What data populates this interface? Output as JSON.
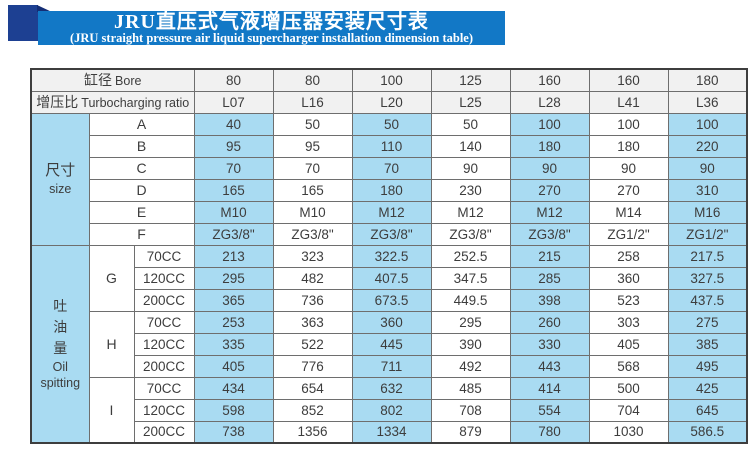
{
  "header": {
    "title_zh": "JRU直压式气液增压器安装尺寸表",
    "title_en": "(JRU straight pressure air liquid supercharger installation dimension table)"
  },
  "colors": {
    "banner-blue": "#1278c6",
    "navy": "#1d4092",
    "cell-blue": "#a9dbf2",
    "header-gray": "#f1f1f1",
    "text": "#3d3d3d"
  },
  "table": {
    "bore_label_zh": "缸径",
    "bore_label_en": "Bore",
    "bore_values": [
      "80",
      "80",
      "100",
      "125",
      "160",
      "160",
      "180"
    ],
    "ratio_label_zh": "增压比",
    "ratio_label_en": "Turbocharging ratio",
    "ratio_values": [
      "L07",
      "L16",
      "L20",
      "L25",
      "L28",
      "L41",
      "L36"
    ],
    "size_group": {
      "zh": "尺寸",
      "en": "size"
    },
    "size_rows": [
      {
        "label": "A",
        "values": [
          "40",
          "50",
          "50",
          "50",
          "100",
          "100",
          "100"
        ]
      },
      {
        "label": "B",
        "values": [
          "95",
          "95",
          "110",
          "140",
          "180",
          "180",
          "220"
        ]
      },
      {
        "label": "C",
        "values": [
          "70",
          "70",
          "70",
          "90",
          "90",
          "90",
          "90"
        ]
      },
      {
        "label": "D",
        "values": [
          "165",
          "165",
          "180",
          "230",
          "270",
          "270",
          "310"
        ]
      },
      {
        "label": "E",
        "values": [
          "M10",
          "M10",
          "M12",
          "M12",
          "M12",
          "M14",
          "M16"
        ]
      },
      {
        "label": "F",
        "values": [
          "ZG3/8\"",
          "ZG3/8\"",
          "ZG3/8\"",
          "ZG3/8\"",
          "ZG3/8\"",
          "ZG1/2\"",
          "ZG1/2\""
        ]
      }
    ],
    "oil_group": {
      "zh": "吐油量",
      "en1": "Oil",
      "en2": "spitting"
    },
    "oil_groups": [
      {
        "letter": "G",
        "rows": [
          {
            "cc": "70CC",
            "values": [
              "213",
              "323",
              "322.5",
              "252.5",
              "215",
              "258",
              "217.5"
            ]
          },
          {
            "cc": "120CC",
            "values": [
              "295",
              "482",
              "407.5",
              "347.5",
              "285",
              "360",
              "327.5"
            ]
          },
          {
            "cc": "200CC",
            "values": [
              "365",
              "736",
              "673.5",
              "449.5",
              "398",
              "523",
              "437.5"
            ]
          }
        ]
      },
      {
        "letter": "H",
        "rows": [
          {
            "cc": "70CC",
            "values": [
              "253",
              "363",
              "360",
              "295",
              "260",
              "303",
              "275"
            ]
          },
          {
            "cc": "120CC",
            "values": [
              "335",
              "522",
              "445",
              "390",
              "330",
              "405",
              "385"
            ]
          },
          {
            "cc": "200CC",
            "values": [
              "405",
              "776",
              "711",
              "492",
              "443",
              "568",
              "495"
            ]
          }
        ]
      },
      {
        "letter": "I",
        "rows": [
          {
            "cc": "70CC",
            "values": [
              "434",
              "654",
              "632",
              "485",
              "414",
              "500",
              "425"
            ]
          },
          {
            "cc": "120CC",
            "values": [
              "598",
              "852",
              "802",
              "708",
              "554",
              "704",
              "645"
            ]
          },
          {
            "cc": "200CC",
            "values": [
              "738",
              "1356",
              "1334",
              "879",
              "780",
              "1030",
              "586.5"
            ]
          }
        ]
      }
    ]
  }
}
